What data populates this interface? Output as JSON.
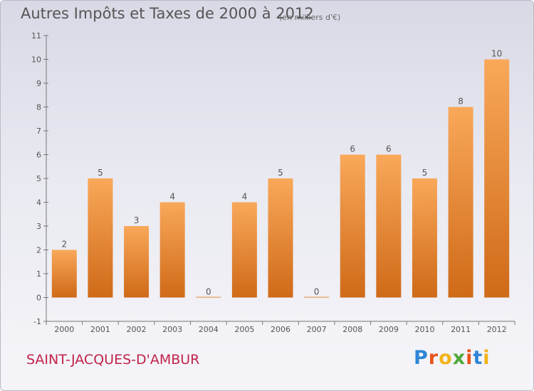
{
  "header": {
    "title": "Autres Impôts et Taxes de 2000 à 2012",
    "subtitle": "(en milliers d'€)"
  },
  "footer": {
    "town": "SAINT-JACQUES-D'AMBUR",
    "logo_text": "Proxiti"
  },
  "colors": {
    "bar_top": "#f9a85a",
    "bar_bottom": "#cf6a18",
    "town": "#c0234a"
  },
  "chart_data": {
    "type": "bar",
    "title": "Autres Impôts et Taxes de 2000 à 2012",
    "subtitle": "(en milliers d'€)",
    "categories": [
      "2000",
      "2001",
      "2002",
      "2003",
      "2004",
      "2005",
      "2006",
      "2007",
      "2008",
      "2009",
      "2010",
      "2011",
      "2012"
    ],
    "values": [
      2,
      5,
      3,
      4,
      0,
      4,
      5,
      0,
      6,
      6,
      5,
      8,
      10
    ],
    "y_ticks": [
      "-1",
      "0",
      "1",
      "2",
      "3",
      "4",
      "5",
      "6",
      "7",
      "8",
      "9",
      "10",
      "11"
    ],
    "ylim": [
      -1,
      11
    ],
    "grid": false,
    "xlabel": "",
    "ylabel": ""
  }
}
